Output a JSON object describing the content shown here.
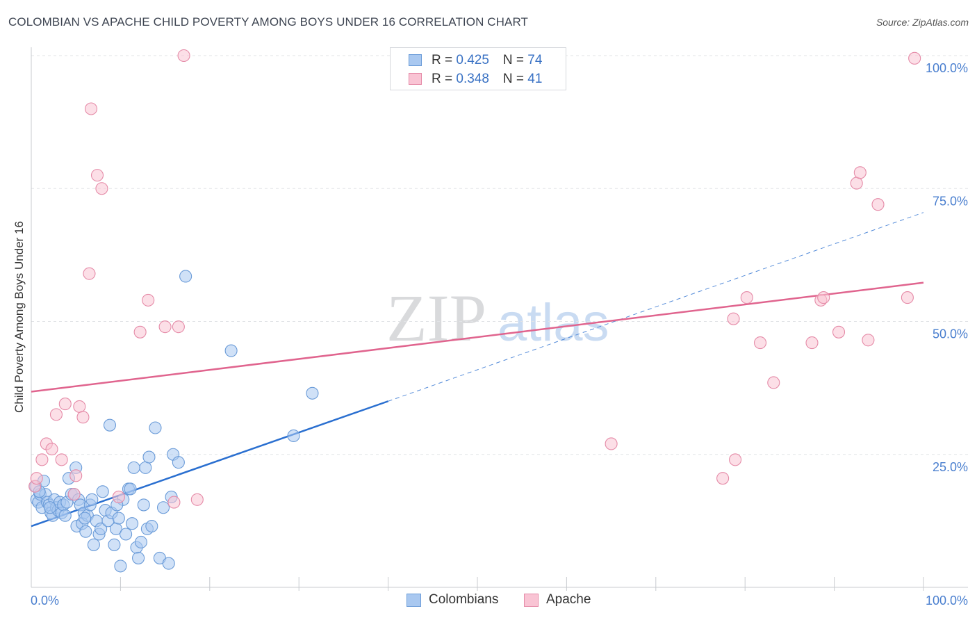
{
  "title": "COLOMBIAN VS APACHE CHILD POVERTY AMONG BOYS UNDER 16 CORRELATION CHART",
  "source": "Source: ZipAtlas.com",
  "watermark": {
    "zip": "ZIP",
    "atlas": "atlas"
  },
  "legend": {
    "rows": [
      {
        "r_label": "R = ",
        "r_value": "0.425",
        "n_label": "N = ",
        "n_value": "74",
        "color": "#a9c8f0",
        "border": "#6a9bd8"
      },
      {
        "r_label": "R = ",
        "r_value": "0.348",
        "n_label": "N = ",
        "n_value": "41",
        "color": "#f9c4d4",
        "border": "#e58aa7"
      }
    ]
  },
  "bottom_legend": [
    "Colombians",
    "Apache"
  ],
  "chart_data": {
    "type": "scatter",
    "title": "COLOMBIAN VS APACHE CHILD POVERTY AMONG BOYS UNDER 16 CORRELATION CHART",
    "xlabel": "",
    "ylabel": "Child Poverty Among Boys Under 16",
    "xlim": [
      0,
      100
    ],
    "ylim": [
      0,
      100
    ],
    "x_tick_labels": [
      "0.0%",
      "100.0%"
    ],
    "y_tick_labels": [
      {
        "value": 25,
        "label": "25.0%"
      },
      {
        "value": 50,
        "label": "50.0%"
      },
      {
        "value": 75,
        "label": "75.0%"
      },
      {
        "value": 100,
        "label": "100.0%"
      }
    ],
    "grid": true,
    "series": [
      {
        "name": "Colombians",
        "color": "#6a9bd8",
        "fill": "#a9c8f0",
        "line_color": "#2a6fd0",
        "trend": {
          "x0": 0,
          "y0": 11.5,
          "x1": 40,
          "y1": 35.0,
          "dash_x1": 100,
          "dash_y1": 70.5
        },
        "points": [
          [
            0.5,
            19.0
          ],
          [
            0.6,
            16.5
          ],
          [
            0.8,
            16.0
          ],
          [
            1.0,
            17.5
          ],
          [
            1.2,
            15.0
          ],
          [
            1.4,
            20.0
          ],
          [
            1.6,
            17.5
          ],
          [
            1.8,
            16.0
          ],
          [
            2.0,
            15.5
          ],
          [
            2.2,
            14.0
          ],
          [
            2.4,
            13.5
          ],
          [
            2.6,
            16.5
          ],
          [
            2.8,
            15.0
          ],
          [
            3.0,
            14.5
          ],
          [
            3.2,
            16.0
          ],
          [
            3.4,
            14.0
          ],
          [
            3.6,
            15.5
          ],
          [
            3.8,
            13.5
          ],
          [
            4.0,
            16.0
          ],
          [
            4.2,
            20.5
          ],
          [
            4.5,
            17.5
          ],
          [
            4.8,
            17.5
          ],
          [
            5.0,
            22.5
          ],
          [
            5.1,
            11.5
          ],
          [
            5.3,
            16.5
          ],
          [
            5.5,
            15.5
          ],
          [
            5.7,
            12.0
          ],
          [
            5.9,
            14.0
          ],
          [
            6.1,
            10.5
          ],
          [
            6.3,
            13.5
          ],
          [
            6.6,
            15.5
          ],
          [
            6.8,
            16.5
          ],
          [
            7.0,
            8.0
          ],
          [
            7.3,
            12.5
          ],
          [
            7.6,
            10.0
          ],
          [
            7.8,
            11.0
          ],
          [
            8.0,
            18.0
          ],
          [
            8.3,
            14.5
          ],
          [
            8.6,
            12.5
          ],
          [
            8.8,
            30.5
          ],
          [
            9.0,
            14.0
          ],
          [
            9.3,
            8.0
          ],
          [
            9.5,
            11.0
          ],
          [
            9.8,
            13.0
          ],
          [
            10.0,
            4.0
          ],
          [
            10.3,
            16.5
          ],
          [
            10.6,
            10.0
          ],
          [
            10.9,
            18.5
          ],
          [
            11.1,
            18.5
          ],
          [
            11.3,
            12.0
          ],
          [
            11.5,
            22.5
          ],
          [
            11.8,
            7.5
          ],
          [
            12.0,
            5.5
          ],
          [
            12.3,
            8.5
          ],
          [
            12.6,
            15.5
          ],
          [
            12.8,
            22.5
          ],
          [
            13.0,
            11.0
          ],
          [
            13.2,
            24.5
          ],
          [
            13.5,
            11.5
          ],
          [
            13.9,
            30.0
          ],
          [
            14.4,
            5.5
          ],
          [
            14.8,
            15.0
          ],
          [
            15.4,
            4.5
          ],
          [
            15.7,
            17.0
          ],
          [
            15.9,
            25.0
          ],
          [
            16.5,
            23.5
          ],
          [
            17.3,
            58.5
          ],
          [
            22.4,
            44.5
          ],
          [
            29.4,
            28.5
          ],
          [
            31.5,
            36.5
          ],
          [
            0.9,
            18.0
          ],
          [
            2.1,
            15.0
          ],
          [
            6.0,
            13.0
          ],
          [
            9.6,
            15.5
          ]
        ]
      },
      {
        "name": "Apache",
        "color": "#e58aa7",
        "fill": "#f9c4d4",
        "line_color": "#e0648e",
        "trend": {
          "x0": 0,
          "y0": 36.8,
          "x1": 100,
          "y1": 57.3
        },
        "points": [
          [
            0.4,
            19.0
          ],
          [
            0.6,
            20.5
          ],
          [
            1.2,
            24.0
          ],
          [
            1.7,
            27.0
          ],
          [
            2.3,
            26.0
          ],
          [
            2.8,
            32.5
          ],
          [
            3.4,
            24.0
          ],
          [
            3.8,
            34.5
          ],
          [
            4.8,
            17.5
          ],
          [
            5.0,
            21.0
          ],
          [
            5.4,
            34.0
          ],
          [
            5.8,
            32.0
          ],
          [
            6.5,
            59.0
          ],
          [
            6.7,
            90.0
          ],
          [
            7.4,
            77.5
          ],
          [
            7.9,
            75.0
          ],
          [
            9.8,
            17.0
          ],
          [
            12.2,
            48.0
          ],
          [
            13.1,
            54.0
          ],
          [
            15.0,
            49.0
          ],
          [
            16.0,
            16.0
          ],
          [
            16.5,
            49.0
          ],
          [
            17.1,
            100.0
          ],
          [
            18.6,
            16.5
          ],
          [
            65.0,
            27.0
          ],
          [
            77.5,
            20.5
          ],
          [
            78.9,
            24.0
          ],
          [
            78.7,
            50.5
          ],
          [
            80.2,
            54.5
          ],
          [
            81.7,
            46.0
          ],
          [
            83.2,
            38.5
          ],
          [
            87.5,
            46.0
          ],
          [
            88.5,
            54.0
          ],
          [
            88.8,
            54.5
          ],
          [
            90.5,
            48.0
          ],
          [
            92.5,
            76.0
          ],
          [
            92.9,
            78.0
          ],
          [
            93.8,
            46.5
          ],
          [
            94.9,
            72.0
          ],
          [
            98.2,
            54.5
          ],
          [
            99.0,
            99.5
          ]
        ]
      }
    ]
  }
}
